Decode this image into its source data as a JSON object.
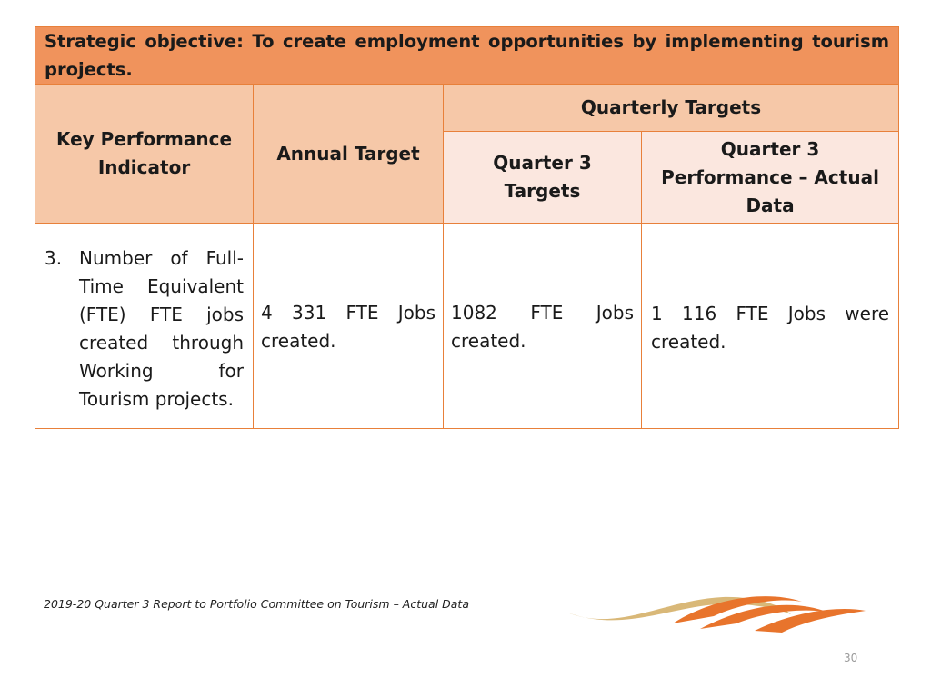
{
  "objective": "Strategic objective: To create employment opportunities by implementing tourism projects.",
  "headers": {
    "kpi": "Key Performance Indicator",
    "annual_target": "Annual Target",
    "quarterly_targets": "Quarterly Targets",
    "q3_targets": "Quarter 3 Targets",
    "q3_performance": "Quarter 3 Performance – Actual Data"
  },
  "rows": [
    {
      "number": "3.",
      "indicator": "Number of Full-Time Equivalent (FTE) FTE jobs created through Working for Tourism projects.",
      "annual_target": "4 331 FTE Jobs created.",
      "q3_target": "1082 FTE Jobs created.",
      "q3_actual": "1 116 FTE Jobs were created."
    }
  ],
  "footer": {
    "note": "2019-20 Quarter 3 Report to Portfolio Committee on Tourism  – Actual Data",
    "page_number": "30"
  },
  "colors": {
    "objective_bg": "#f0935c",
    "header_bg": "#f6c8a8",
    "subheader_bg": "#fbe7df",
    "border": "#e8803a",
    "logo_orange": "#e8742c",
    "logo_gold": "#d9b878"
  },
  "logo_icon": "swoosh-logo-icon"
}
